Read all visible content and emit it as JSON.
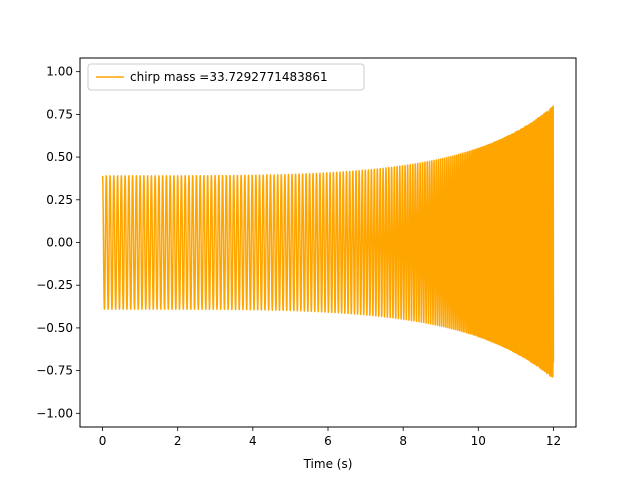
{
  "chart_data": {
    "type": "line",
    "title": "",
    "xlabel": "Time (s)",
    "ylabel": "",
    "xlim": [
      -0.6,
      12.6
    ],
    "ylim": [
      -1.08,
      1.08
    ],
    "x_ticks": [
      0,
      2,
      4,
      6,
      8,
      10,
      12
    ],
    "x_tick_labels": [
      "0",
      "2",
      "4",
      "6",
      "8",
      "10",
      "12"
    ],
    "y_ticks": [
      -1.0,
      -0.75,
      -0.5,
      -0.25,
      0.0,
      0.25,
      0.5,
      0.75,
      1.0
    ],
    "y_tick_labels": [
      "−1.00",
      "−0.75",
      "−0.50",
      "−0.25",
      "0.00",
      "0.25",
      "0.50",
      "0.75",
      "1.00"
    ],
    "grid": false,
    "legend_position": "top-left",
    "series": [
      {
        "name": "chirp mass =33.7292771483861",
        "color": "#ffa500",
        "signal": "chirp",
        "t_start": 0,
        "t_end": 12.0,
        "t_merger": 12.0,
        "initial_frequency_hz": 10,
        "final_frequency_hz": 60,
        "initial_amplitude": 0.39,
        "final_amplitude": 1.0
      }
    ]
  }
}
